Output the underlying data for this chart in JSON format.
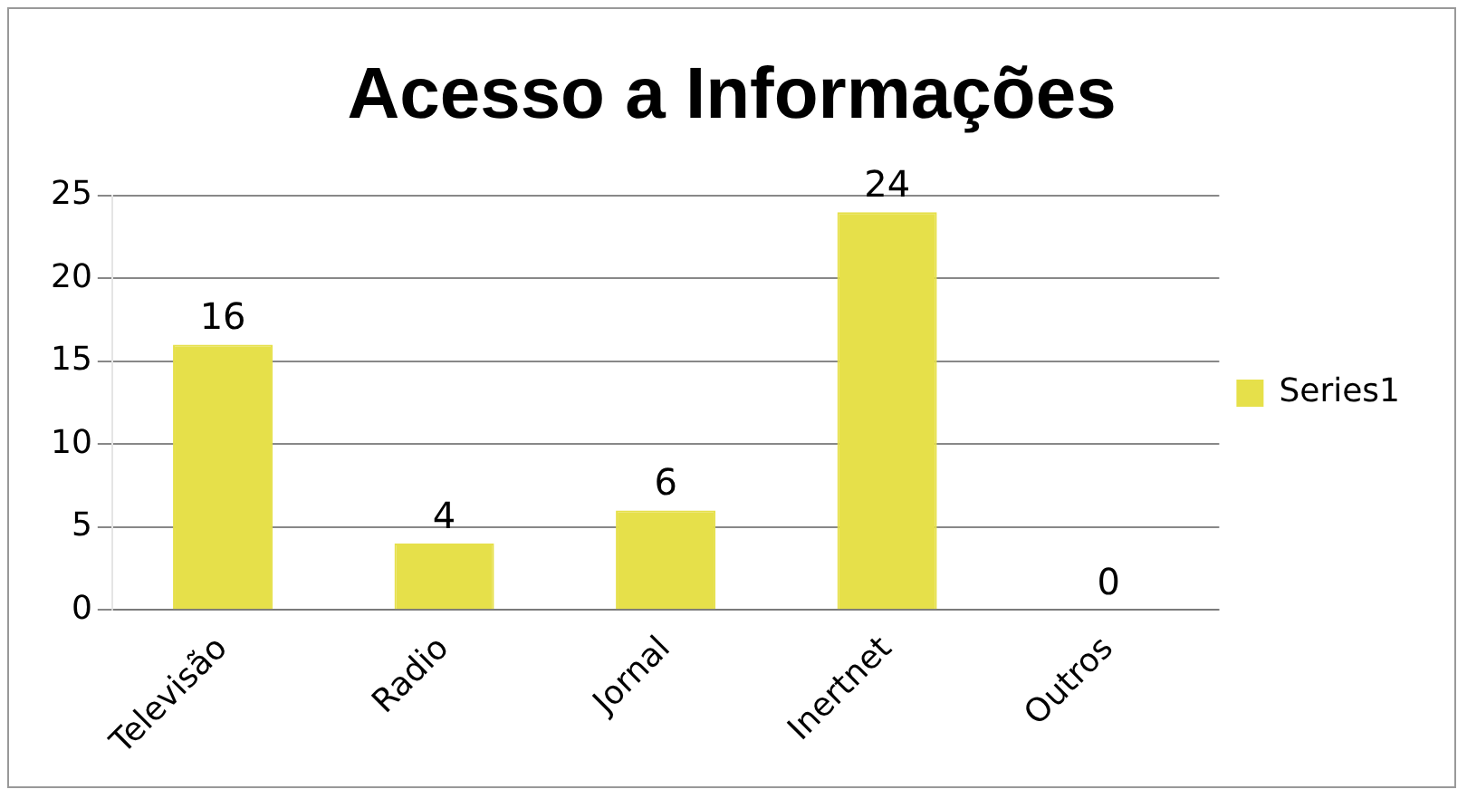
{
  "chart_data": {
    "type": "bar",
    "title": "Acesso a Informações",
    "categories": [
      "Televisão",
      "Radio",
      "Jornal",
      "Inertnet",
      "Outros"
    ],
    "series": [
      {
        "name": "Series1",
        "color": "#e6e04a",
        "values": [
          16,
          4,
          6,
          24,
          0
        ]
      }
    ],
    "ylim": [
      0,
      25
    ],
    "yticks": [
      0,
      5,
      10,
      15,
      20,
      25
    ],
    "grid": "y",
    "legend": "right",
    "data_labels": true
  }
}
